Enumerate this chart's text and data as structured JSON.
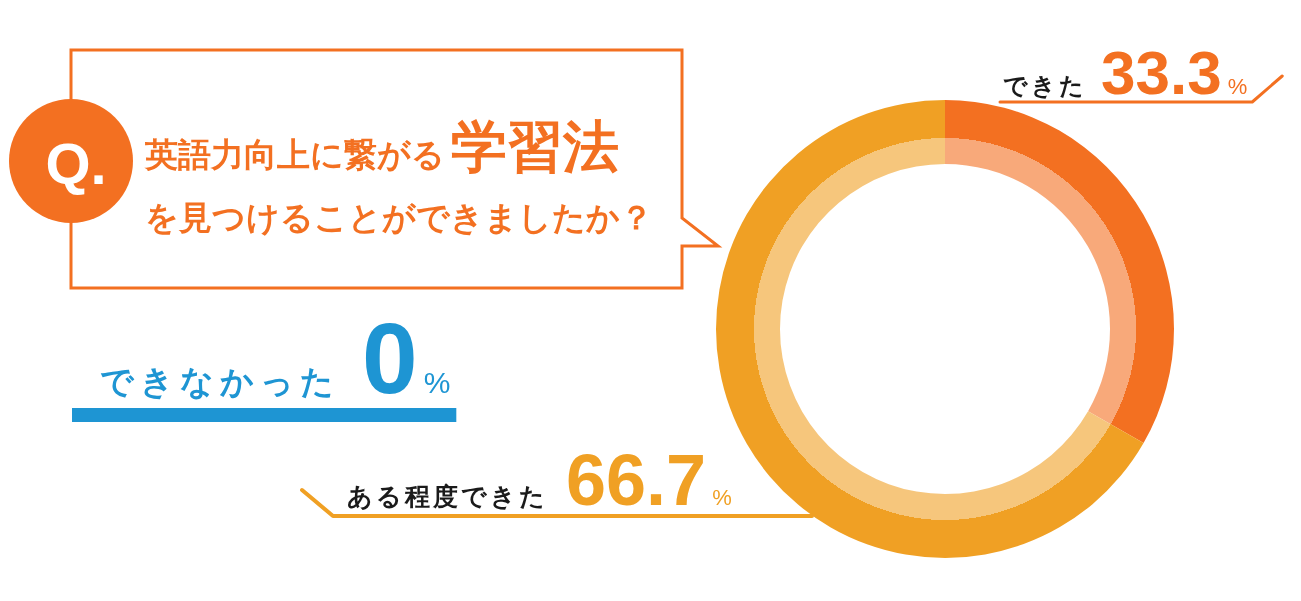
{
  "chart_data": {
    "type": "donut",
    "title": "英語力向上に繋がる学習法を見つけることができましたか？",
    "annotations": [
      "Q."
    ],
    "categories": [
      "できた",
      "ある程度できた",
      "できなかった"
    ],
    "values": [
      33.3,
      66.7,
      0
    ],
    "colors": [
      "#f37021",
      "#f0a024",
      "#1e95d3"
    ],
    "value_labels": [
      "33.3%",
      "66.7%",
      "0%"
    ]
  }
}
